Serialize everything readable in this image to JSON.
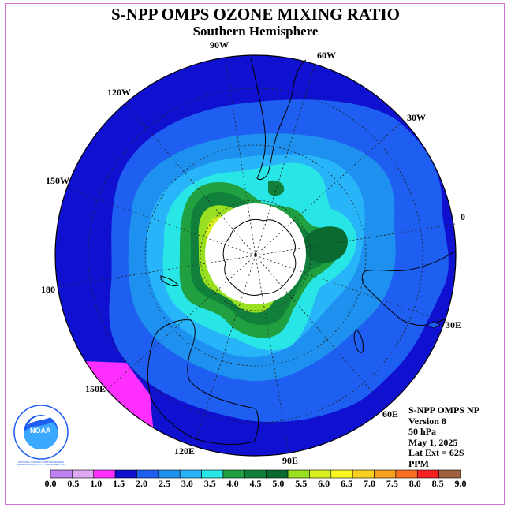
{
  "title": "S-NPP OMPS OZONE MIXING RATIO",
  "subtitle": "Southern Hemisphere",
  "logo_text": "NOAA",
  "logo_ring_text": "NATIONAL OCEANIC AND ATMOSPHERIC ADMINISTRATION · U.S. DEPARTMENT OF COMMERCE",
  "longitude_labels": {
    "w90": "90W",
    "w60": "60W",
    "w30": "30W",
    "zero": "0",
    "e30": "30E",
    "e60": "60E",
    "e90": "90E",
    "e120": "120E",
    "e150": "150E",
    "d180": "180",
    "w150": "150W",
    "w120": "120W"
  },
  "info": {
    "instrument": "S-NPP OMPS NP",
    "version": "Version 8",
    "level": "50 hPa",
    "date": "May 1, 2025",
    "lat_ext": "Lat Ext = 62S",
    "units": "PPM"
  },
  "colorbar": {
    "labels": [
      "0.0",
      "0.5",
      "1.0",
      "1.5",
      "2.0",
      "2.5",
      "3.0",
      "3.5",
      "4.0",
      "4.5",
      "5.0",
      "5.5",
      "6.0",
      "6.5",
      "7.0",
      "7.5",
      "8.0",
      "8.5",
      "9.0"
    ],
    "colors": [
      "#c080f0",
      "#e0a8f0",
      "#ff30ff",
      "#1010d0",
      "#1e5ef0",
      "#1e90f0",
      "#28b4f8",
      "#28e6e6",
      "#20a040",
      "#10803a",
      "#0a6a30",
      "#98e020",
      "#d8f020",
      "#f8f820",
      "#f8d020",
      "#f8a020",
      "#f87020",
      "#f82020",
      "#a06040"
    ]
  }
}
